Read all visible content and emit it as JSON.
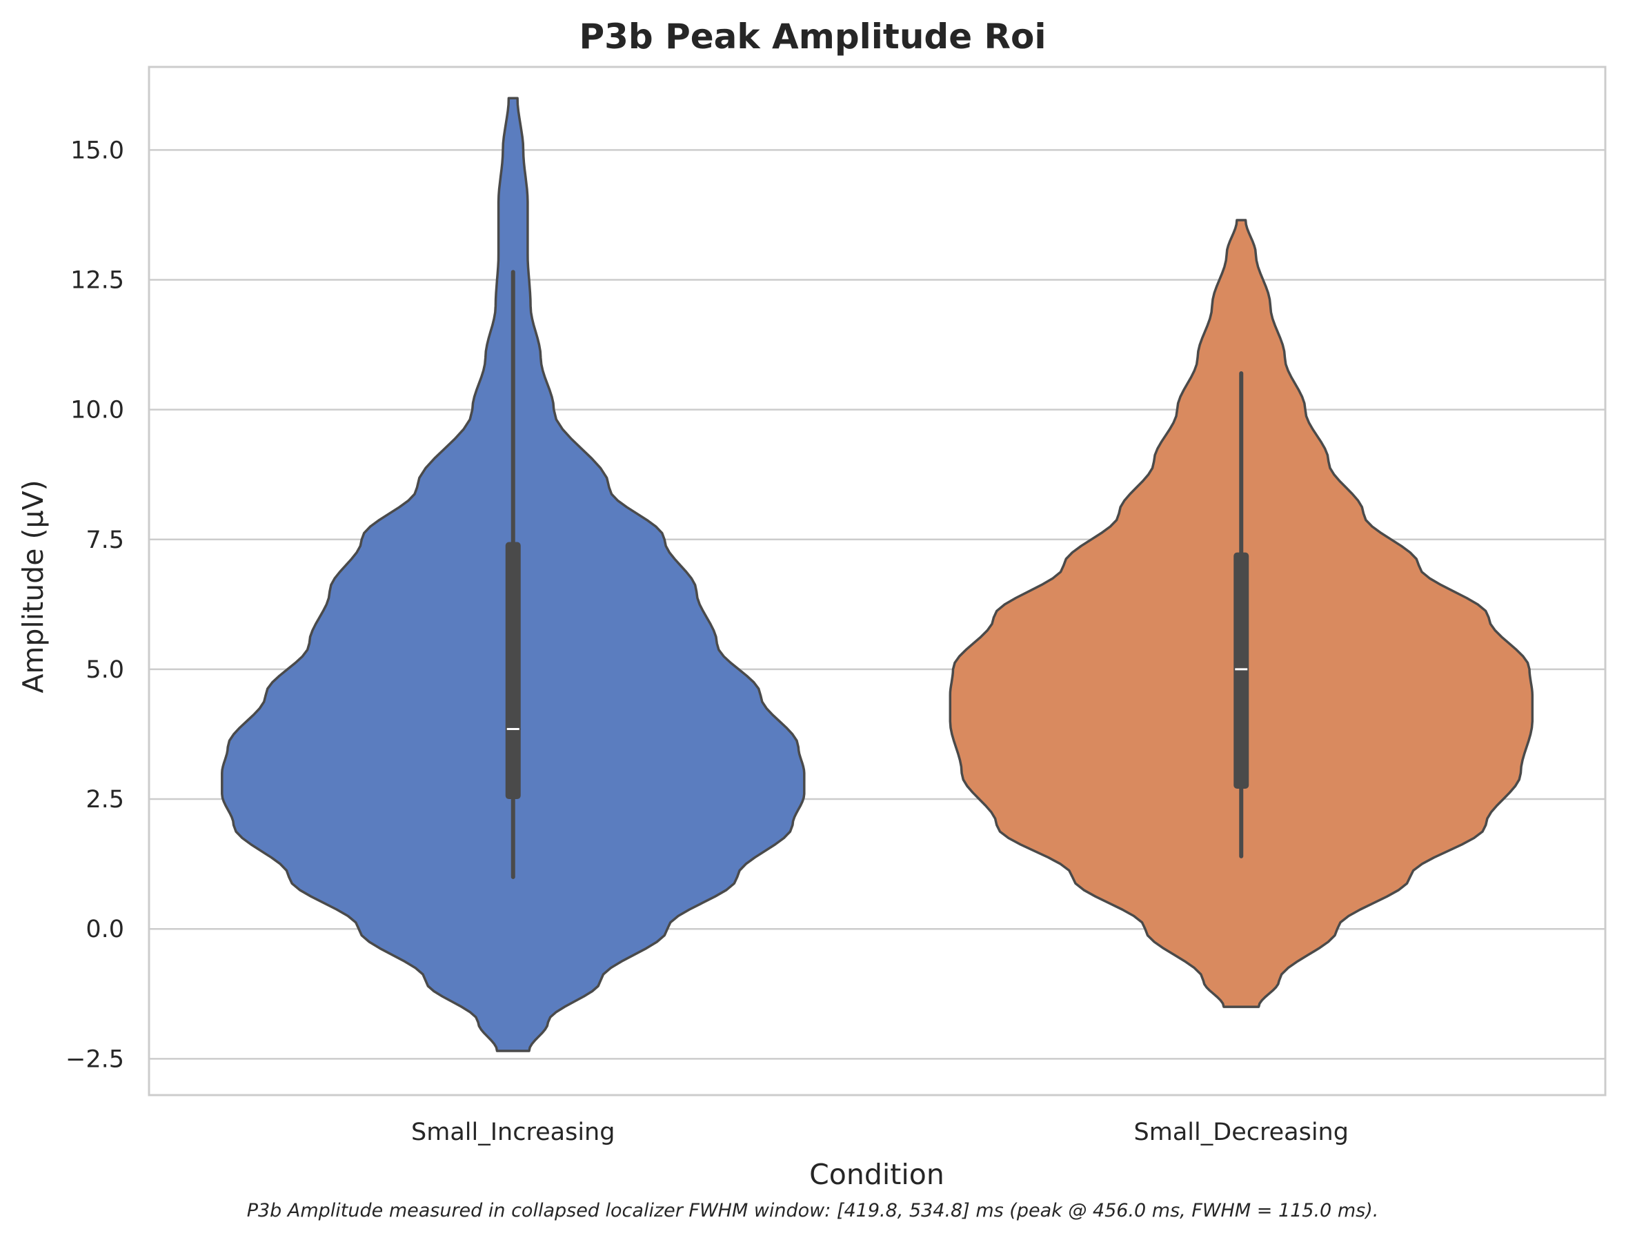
{
  "chart_data": {
    "type": "violin",
    "title": "P3b Peak Amplitude Roi",
    "xlabel": "Condition",
    "ylabel": "Amplitude (μV)",
    "caption": "P3b Amplitude measured in collapsed localizer FWHM window: [419.8, 534.8] ms (peak @ 456.0 ms, FWHM = 115.0 ms).",
    "ylim": [
      -3.2,
      16.6
    ],
    "yticks": [
      -2.5,
      0.0,
      2.5,
      5.0,
      7.5,
      10.0,
      12.5,
      15.0
    ],
    "ytick_labels": [
      "−2.5",
      "0.0",
      "2.5",
      "5.0",
      "7.5",
      "10.0",
      "12.5",
      "15.0"
    ],
    "grid": "horizontal",
    "categories": [
      "Small_Increasing",
      "Small_Decreasing"
    ],
    "series": [
      {
        "category": "Small_Increasing",
        "color": "#5b7dbf",
        "median": 3.85,
        "q1": 2.5,
        "q3": 7.45,
        "whisker_low": 1.0,
        "whisker_high": 12.65,
        "violin_min": -2.35,
        "violin_max": 16.0,
        "density_profile": [
          [
            -2.35,
            0.055
          ],
          [
            -1.8,
            0.12
          ],
          [
            -1.0,
            0.3
          ],
          [
            0.0,
            0.53
          ],
          [
            1.0,
            0.77
          ],
          [
            2.0,
            0.96
          ],
          [
            2.6,
            1.0
          ],
          [
            3.0,
            1.0
          ],
          [
            3.5,
            0.98
          ],
          [
            4.5,
            0.85
          ],
          [
            5.5,
            0.7
          ],
          [
            6.5,
            0.63
          ],
          [
            7.5,
            0.52
          ],
          [
            8.5,
            0.33
          ],
          [
            10.0,
            0.14
          ],
          [
            11.0,
            0.095
          ],
          [
            12.0,
            0.06
          ],
          [
            13.0,
            0.05
          ],
          [
            14.0,
            0.05
          ],
          [
            15.0,
            0.035
          ],
          [
            16.0,
            0.015
          ]
        ]
      },
      {
        "category": "Small_Decreasing",
        "color": "#d98a5f",
        "median": 5.0,
        "q1": 2.7,
        "q3": 7.25,
        "whisker_low": 1.4,
        "whisker_high": 10.7,
        "violin_min": -1.5,
        "violin_max": 13.65,
        "density_profile": [
          [
            -1.5,
            0.06
          ],
          [
            -1.0,
            0.13
          ],
          [
            0.0,
            0.33
          ],
          [
            1.0,
            0.58
          ],
          [
            2.0,
            0.84
          ],
          [
            3.0,
            0.96
          ],
          [
            4.0,
            1.0
          ],
          [
            4.5,
            1.0
          ],
          [
            5.0,
            0.99
          ],
          [
            6.0,
            0.85
          ],
          [
            7.0,
            0.61
          ],
          [
            8.0,
            0.42
          ],
          [
            9.0,
            0.3
          ],
          [
            10.0,
            0.22
          ],
          [
            11.0,
            0.15
          ],
          [
            12.0,
            0.1
          ],
          [
            13.0,
            0.05
          ],
          [
            13.65,
            0.015
          ]
        ]
      }
    ]
  }
}
